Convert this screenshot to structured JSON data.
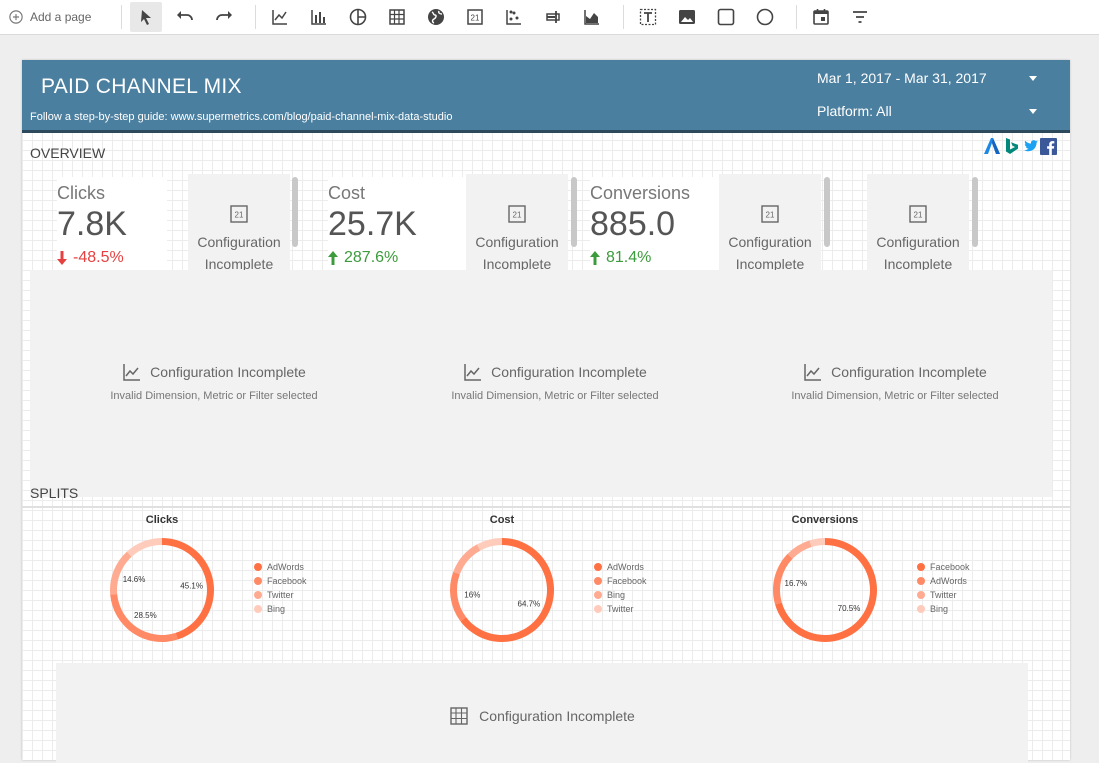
{
  "toolbar": {
    "add_page_label": "Add a page",
    "tools": [
      "select-cursor-icon",
      "undo-icon",
      "redo-icon",
      "time-series-icon",
      "bar-chart-icon",
      "pie-chart-icon",
      "table-icon",
      "geo-map-icon",
      "scorecard-icon",
      "scatter-chart-icon",
      "bullet-chart-icon",
      "area-chart-icon",
      "text-icon",
      "image-icon",
      "rectangle-icon",
      "circle-icon",
      "date-range-icon",
      "filter-icon"
    ]
  },
  "header": {
    "title": "PAID CHANNEL MIX",
    "guide": "Follow a step-by-step guide: www.supermetrics.com/blog/paid-channel-mix-data-studio",
    "date_range": "Mar 1, 2017 - Mar 31, 2017",
    "platform": "Platform: All",
    "color": "#4b7f9f"
  },
  "overview": {
    "label": "OVERVIEW",
    "logos": [
      "adwords-logo-icon",
      "bing-logo-icon",
      "twitter-logo-icon",
      "facebook-logo-icon"
    ],
    "scorecards": [
      {
        "label": "Clicks",
        "value": "7.8K",
        "delta": "-48.5%",
        "direction": "down"
      },
      {
        "label": "Cost",
        "value": "25.7K",
        "delta": "287.6%",
        "direction": "up"
      },
      {
        "label": "Conversions",
        "value": "885.0",
        "delta": "81.4%",
        "direction": "up"
      }
    ],
    "config_incomplete_line1": "Configuration",
    "config_incomplete_line2": "Incomplete",
    "charts": [
      {
        "title": "Configuration Incomplete",
        "subtitle": "Invalid Dimension, Metric or Filter selected"
      },
      {
        "title": "Configuration Incomplete",
        "subtitle": "Invalid Dimension, Metric or Filter selected"
      },
      {
        "title": "Configuration Incomplete",
        "subtitle": "Invalid Dimension, Metric or Filter selected"
      }
    ]
  },
  "splits": {
    "label": "SPLITS",
    "table_placeholder": "Configuration Incomplete"
  },
  "chart_data": [
    {
      "type": "pie",
      "title": "Clicks",
      "categories": [
        "AdWords",
        "Facebook",
        "Twitter",
        "Bing"
      ],
      "values": [
        45.1,
        28.5,
        14.6,
        11.8
      ],
      "labels": [
        "45.1%",
        "28.5%",
        "14.6%",
        ""
      ],
      "colors": [
        "#ff7043",
        "#ff8a65",
        "#ffab91",
        "#ffccbc"
      ]
    },
    {
      "type": "pie",
      "title": "Cost",
      "categories": [
        "AdWords",
        "Facebook",
        "Bing",
        "Twitter"
      ],
      "values": [
        64.7,
        16,
        11.3,
        8
      ],
      "labels": [
        "64.7%",
        "16%",
        "",
        ""
      ],
      "colors": [
        "#ff7043",
        "#ff8a65",
        "#ffab91",
        "#ffccbc"
      ]
    },
    {
      "type": "pie",
      "title": "Conversions",
      "categories": [
        "Facebook",
        "AdWords",
        "Twitter",
        "Bing"
      ],
      "values": [
        70.5,
        16.7,
        8,
        4.8
      ],
      "labels": [
        "70.5%",
        "16.7%",
        "",
        ""
      ],
      "colors": [
        "#ff7043",
        "#ff8a65",
        "#ffab91",
        "#ffccbc"
      ]
    }
  ]
}
